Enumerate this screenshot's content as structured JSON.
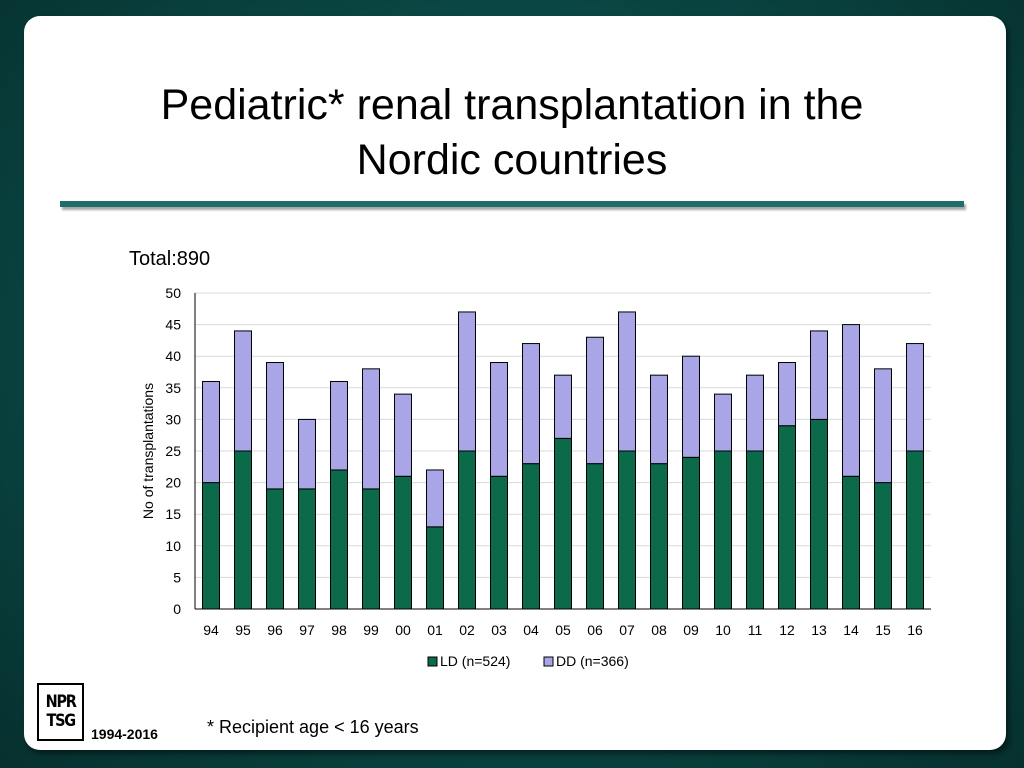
{
  "slide": {
    "title_line1": "Pediatric* renal transplantation in the",
    "title_line2": "Nordic countries",
    "total_label": "Total:890",
    "footnote": "* Recipient age < 16 years",
    "years_label": "1994-2016",
    "logo_line1": "NPR",
    "logo_line2": "TSG"
  },
  "chart_data": {
    "type": "bar",
    "stacked": true,
    "categories": [
      "94",
      "95",
      "96",
      "97",
      "98",
      "99",
      "00",
      "01",
      "02",
      "03",
      "04",
      "05",
      "06",
      "07",
      "08",
      "09",
      "10",
      "11",
      "12",
      "13",
      "14",
      "15",
      "16"
    ],
    "series": [
      {
        "name": "LD (n=524)",
        "color": "#0b6a4a",
        "values": [
          20,
          25,
          19,
          19,
          22,
          19,
          21,
          13,
          25,
          21,
          23,
          27,
          23,
          25,
          23,
          24,
          25,
          25,
          29,
          30,
          21,
          20,
          25
        ]
      },
      {
        "name": "DD (n=366)",
        "color": "#a9a6e8",
        "values": [
          16,
          19,
          20,
          11,
          14,
          19,
          13,
          9,
          22,
          18,
          19,
          10,
          20,
          22,
          14,
          16,
          9,
          12,
          10,
          14,
          24,
          18,
          17
        ]
      }
    ],
    "ylabel": "No of transplantations",
    "xlabel": "",
    "ylim": [
      0,
      50
    ],
    "yticks": [
      0,
      5,
      10,
      15,
      20,
      25,
      30,
      35,
      40,
      45,
      50
    ],
    "grid": true,
    "legend": "bottom"
  }
}
